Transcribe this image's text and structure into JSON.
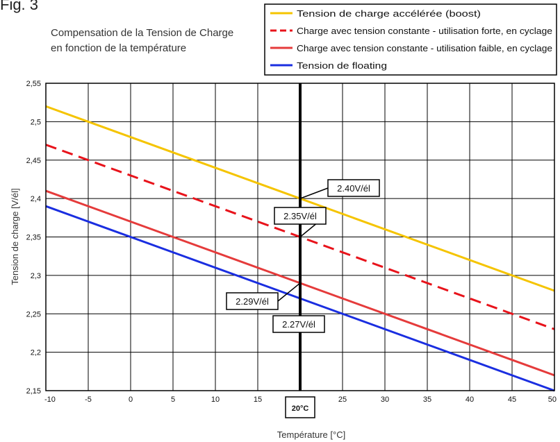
{
  "figure_label": "Fig. 3",
  "subtitle_lines": [
    "Compensation de la Tension de Charge",
    "en fonction de la température"
  ],
  "chart_data": {
    "type": "line",
    "xlabel": "Température [°C]",
    "ylabel": "Tension de charge [V/él]",
    "xlim": [
      -10,
      50
    ],
    "ylim": [
      2.15,
      2.55
    ],
    "x_ticks": [
      "-10",
      "-5",
      "0",
      "5",
      "10",
      "15",
      "20",
      "25",
      "30",
      "35",
      "40",
      "45",
      "50"
    ],
    "y_ticks": [
      "2,55",
      "2,5",
      "2,45",
      "2,4",
      "2,35",
      "2,3",
      "2,25",
      "2,2",
      "2,15"
    ],
    "grid": true,
    "legend_position": "top-right",
    "series": [
      {
        "name": "Tension de charge accélérée (boost)",
        "color": "#f5c400",
        "style": "solid",
        "x": [
          -10,
          50
        ],
        "y": [
          2.52,
          2.28
        ]
      },
      {
        "name": "Charge avec tension constante - utilisation forte, en cyclage",
        "color": "#e8131b",
        "style": "dashed",
        "x": [
          -10,
          50
        ],
        "y": [
          2.47,
          2.23
        ]
      },
      {
        "name": "Charge avec tension constante - utilisation faible, en cyclage",
        "color": "#e53b3b",
        "style": "solid",
        "x": [
          -10,
          50
        ],
        "y": [
          2.41,
          2.17
        ]
      },
      {
        "name": "Tension de floating",
        "color": "#1a2ee0",
        "style": "solid",
        "x": [
          -10,
          50
        ],
        "y": [
          2.39,
          2.15
        ]
      }
    ],
    "reference_line": {
      "x": 20,
      "label": "20°C"
    },
    "annotations": [
      {
        "text": "2.40V/él",
        "x": 20,
        "y": 2.4
      },
      {
        "text": "2.35V/él",
        "x": 20,
        "y": 2.35
      },
      {
        "text": "2.29V/él",
        "x": 20,
        "y": 2.29
      },
      {
        "text": "2.27V/él",
        "x": 20,
        "y": 2.27
      }
    ]
  }
}
